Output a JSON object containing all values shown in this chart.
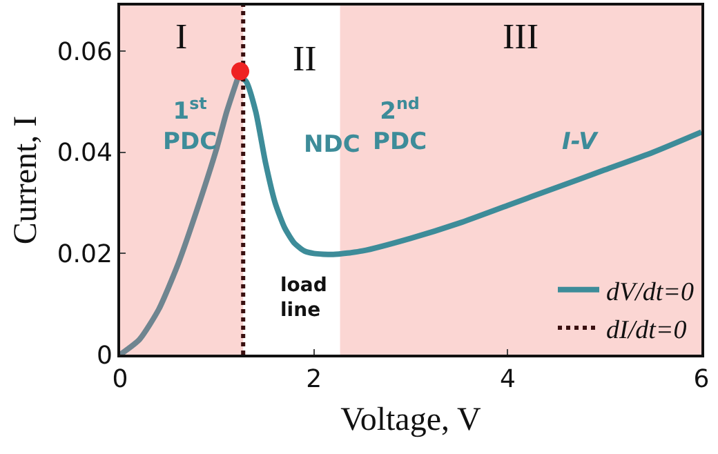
{
  "chart_data": {
    "type": "line",
    "xlabel": "Voltage, V",
    "ylabel": "Current, I",
    "xlim": [
      0,
      6
    ],
    "xticks": [
      0,
      2,
      4,
      6
    ],
    "ylim": [
      0,
      0.069
    ],
    "yticks": [
      0,
      0.02,
      0.04,
      0.06
    ],
    "series": [
      {
        "color": "#6f8590",
        "x": [
          0,
          0.2,
          0.4,
          0.6,
          0.8,
          1.0,
          1.1,
          1.22
        ],
        "values": [
          0,
          0.003,
          0.009,
          0.018,
          0.029,
          0.041,
          0.048,
          0.055
        ]
      },
      {
        "name": "dV/dt=0",
        "color": "#3d8c99",
        "x": [
          1.22,
          1.3,
          1.4,
          1.5,
          1.6,
          1.7,
          1.8,
          1.9,
          2.0,
          2.2,
          2.5,
          3.0,
          3.5,
          4.0,
          4.5,
          5.0,
          5.5,
          6.0
        ],
        "values": [
          0.055,
          0.054,
          0.048,
          0.038,
          0.03,
          0.025,
          0.022,
          0.0205,
          0.02,
          0.0198,
          0.0205,
          0.023,
          0.026,
          0.0295,
          0.033,
          0.0365,
          0.04,
          0.044
        ]
      },
      {
        "name": "dI/dt=0",
        "color": "#3a1010",
        "line_style": "dotted",
        "x": [
          1.27,
          1.27
        ],
        "values": [
          0,
          0.069
        ]
      },
      {
        "type": "scatter",
        "marker": "circle",
        "color": "#ee2222",
        "x": [
          1.24
        ],
        "values": [
          0.056
        ]
      }
    ],
    "bands": [
      {
        "axis": "x",
        "from": 0,
        "to": 1.27,
        "label": "I",
        "color": "#fbd6d3"
      },
      {
        "axis": "x",
        "from": 2.27,
        "to": 6,
        "label": "III",
        "color": "#fbd6d3"
      }
    ],
    "annotations": [
      "II",
      "1$^{st}$\nPDC",
      "NDC",
      "2$^{nd}$\nPDC",
      "I-V",
      "load\nline"
    ],
    "legend": "bottom right",
    "grid": false
  }
}
